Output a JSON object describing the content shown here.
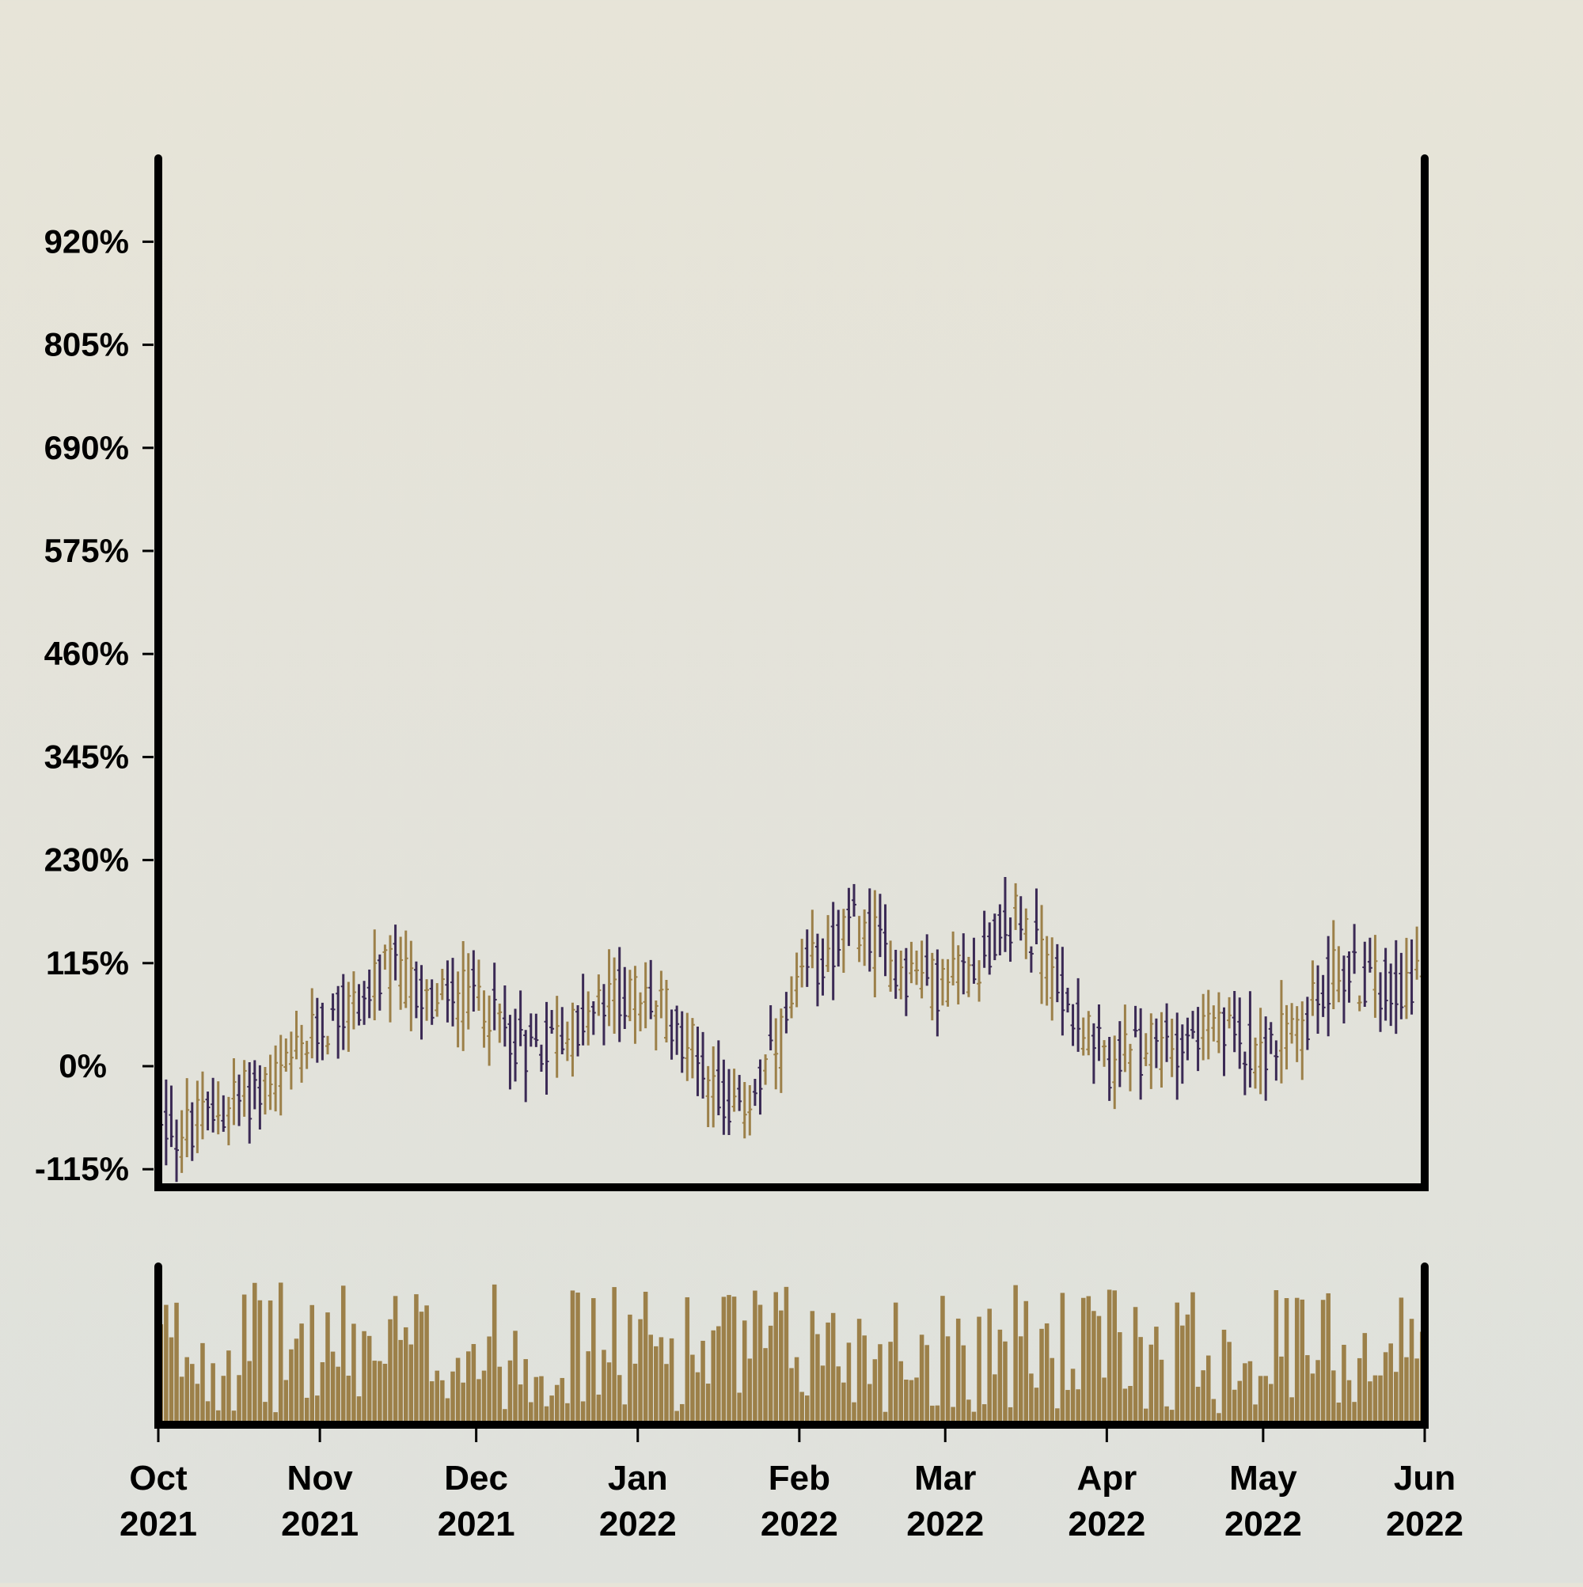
{
  "chart_data": [
    {
      "type": "ohlc",
      "title": "",
      "xlabel": "",
      "ylabel": "",
      "ylim": [
        -115,
        1035
      ],
      "yticks": [
        -115,
        0,
        115,
        230,
        345,
        460,
        575,
        690,
        805,
        920
      ],
      "ytick_labels": [
        "-115%",
        "0%",
        "115%",
        "230%",
        "345%",
        "460%",
        "575%",
        "690%",
        "805%",
        "920%"
      ],
      "xlim": [
        "2021-10-01",
        "2022-06-01"
      ],
      "xticks": [
        "2021-10-01",
        "2021-11-01",
        "2021-12-01",
        "2022-01-01",
        "2022-02-01",
        "2022-03-01",
        "2022-04-01",
        "2022-05-01",
        "2022-06-01"
      ],
      "xtick_labels": [
        [
          "Oct",
          "2021"
        ],
        [
          "Nov",
          "2021"
        ],
        [
          "Dec",
          "2021"
        ],
        [
          "Jan",
          "2022"
        ],
        [
          "Feb",
          "2022"
        ],
        [
          "Mar",
          "2022"
        ],
        [
          "Apr",
          "2022"
        ],
        [
          "May",
          "2022"
        ],
        [
          "Jun",
          "2022"
        ]
      ],
      "colors": {
        "up": "#9c8049",
        "down": "#3b2a55"
      },
      "grid": false,
      "series_approx": [
        {
          "date": "2021-10-01",
          "value": -50
        },
        {
          "date": "2021-10-05",
          "value": -80
        },
        {
          "date": "2021-10-15",
          "value": -40
        },
        {
          "date": "2021-10-25",
          "value": -10
        },
        {
          "date": "2021-11-01",
          "value": 40
        },
        {
          "date": "2021-11-10",
          "value": 80
        },
        {
          "date": "2021-11-15",
          "value": 110
        },
        {
          "date": "2021-11-22",
          "value": 70
        },
        {
          "date": "2021-12-01",
          "value": 80
        },
        {
          "date": "2021-12-10",
          "value": 20
        },
        {
          "date": "2021-12-20",
          "value": 40
        },
        {
          "date": "2021-12-28",
          "value": 80
        },
        {
          "date": "2022-01-05",
          "value": 70
        },
        {
          "date": "2022-01-12",
          "value": 20
        },
        {
          "date": "2022-01-20",
          "value": -60
        },
        {
          "date": "2022-01-28",
          "value": 20
        },
        {
          "date": "2022-02-03",
          "value": 110
        },
        {
          "date": "2022-02-12",
          "value": 160
        },
        {
          "date": "2022-02-20",
          "value": 110
        },
        {
          "date": "2022-02-28",
          "value": 90
        },
        {
          "date": "2022-03-08",
          "value": 120
        },
        {
          "date": "2022-03-15",
          "value": 170
        },
        {
          "date": "2022-03-22",
          "value": 100
        },
        {
          "date": "2022-04-01",
          "value": 0
        },
        {
          "date": "2022-04-10",
          "value": 20
        },
        {
          "date": "2022-04-20",
          "value": 40
        },
        {
          "date": "2022-05-01",
          "value": 20
        },
        {
          "date": "2022-05-08",
          "value": 40
        },
        {
          "date": "2022-05-15",
          "value": 110
        },
        {
          "date": "2022-05-22",
          "value": 90
        },
        {
          "date": "2022-06-01",
          "value": 100
        }
      ]
    },
    {
      "type": "bar",
      "title": "",
      "xlabel": "",
      "ylabel": "",
      "yticks": [],
      "color": "#9c8049",
      "xlim": [
        "2021-10-01",
        "2022-06-01"
      ],
      "description_values": "daily volume bars, unlabeled axis, relative heights 0..1"
    }
  ]
}
